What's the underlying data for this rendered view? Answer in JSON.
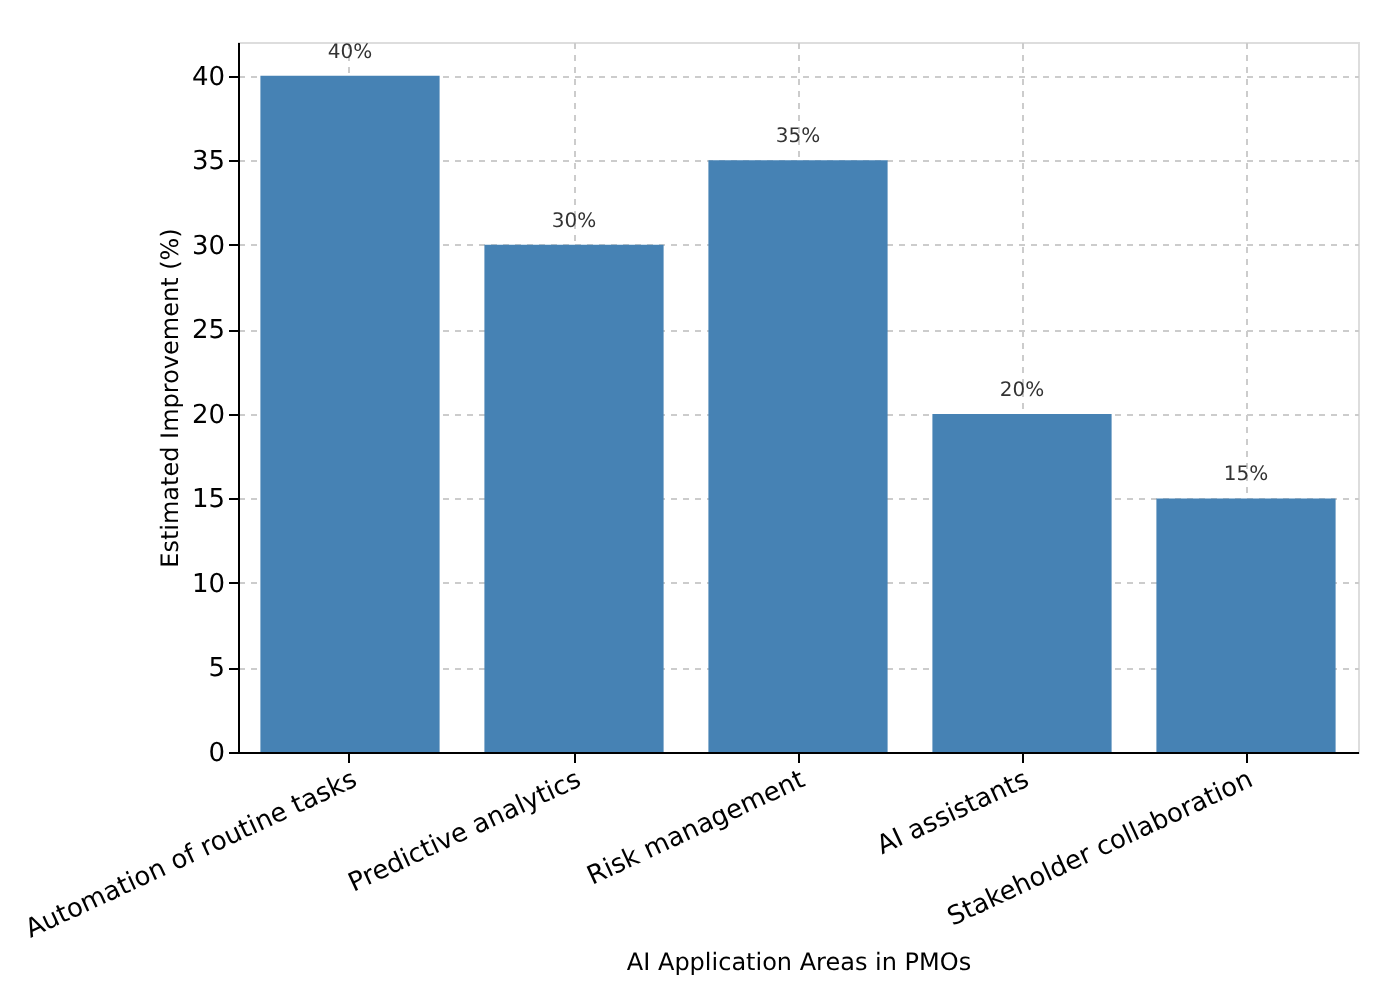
{
  "chart_data": {
    "type": "bar",
    "xlabel": "AI Application Areas in PMOs",
    "ylabel": "Estimated Improvement (%)",
    "categories": [
      "Automation of routine tasks",
      "Predictive analytics",
      "Risk management",
      "AI assistants",
      "Stakeholder collaboration"
    ],
    "values": [
      40,
      30,
      35,
      20,
      15
    ],
    "value_labels": [
      "40%",
      "30%",
      "35%",
      "20%",
      "15%"
    ],
    "color": "#4682b4",
    "ylim": [
      0,
      42
    ],
    "yticks": [
      0,
      5,
      10,
      15,
      20,
      25,
      30,
      35,
      40
    ],
    "grid": true
  }
}
